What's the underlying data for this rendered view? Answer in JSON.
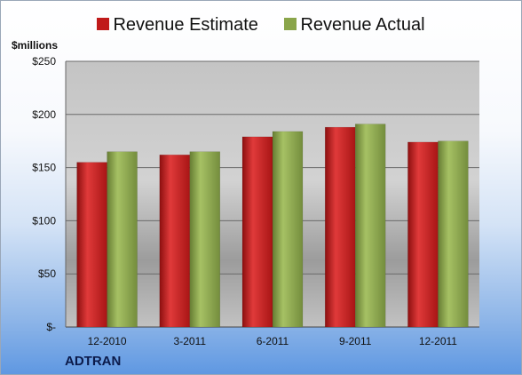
{
  "chart_data": {
    "type": "bar",
    "ylabel": "$millions",
    "footer": "ADTRAN",
    "categories": [
      "12-2010",
      "3-2011",
      "6-2011",
      "9-2011",
      "12-2011"
    ],
    "series": [
      {
        "name": "Revenue Estimate",
        "values": [
          155,
          162,
          179,
          188,
          174
        ]
      },
      {
        "name": "Revenue Actual",
        "values": [
          165,
          165,
          184,
          191,
          175
        ]
      }
    ],
    "ylim": [
      0,
      250
    ],
    "yticks": [
      0,
      50,
      100,
      150,
      200,
      250
    ],
    "ytick_labels": [
      "$-",
      "$50",
      "$100",
      "$150",
      "$200",
      "$250"
    ],
    "grid": true,
    "legend_position": "top",
    "colors": [
      "#c01a1a",
      "#8aa54a"
    ]
  }
}
